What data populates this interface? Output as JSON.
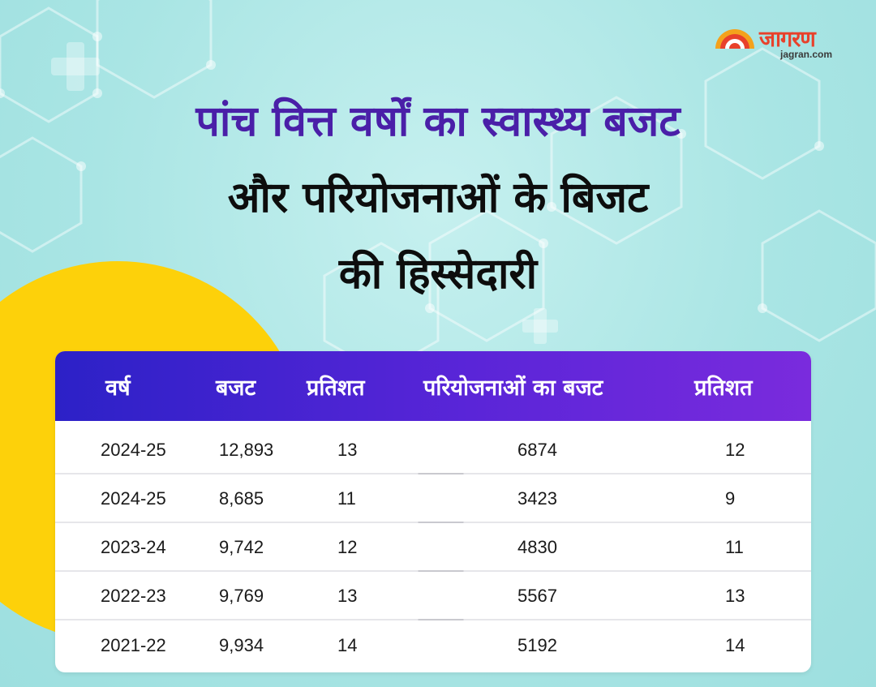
{
  "brand": {
    "wordmark": "जागरण",
    "domain": "jagran.com",
    "colors": {
      "red": "#e8412b",
      "orange": "#f4a21c"
    }
  },
  "title": {
    "line1": "पांच वित्त वर्षों का स्वास्थ्य बजट",
    "line2": "और परियोजनाओं के बिजट",
    "line3": "की हिस्सेदारी"
  },
  "colors": {
    "title_accent": "#4a1fa8",
    "header_start": "#2c21c7",
    "header_end": "#7a2bdd",
    "background": "#aee7e6",
    "sun": "#fdd10a"
  },
  "table": {
    "headers": [
      "वर्ष",
      "बजट",
      "प्रतिशत",
      "परियोजनाओं का बजट",
      "प्रतिशत"
    ],
    "rows": [
      [
        "2024-25",
        "12,893",
        "13",
        "6874",
        "12"
      ],
      [
        "2024-25",
        "8,685",
        "11",
        "3423",
        "9"
      ],
      [
        "2023-24",
        "9,742",
        "12",
        "4830",
        "11"
      ],
      [
        "2022-23",
        "9,769",
        "13",
        "5567",
        "13"
      ],
      [
        "2021-22",
        "9,934",
        "14",
        "5192",
        "14"
      ]
    ]
  }
}
